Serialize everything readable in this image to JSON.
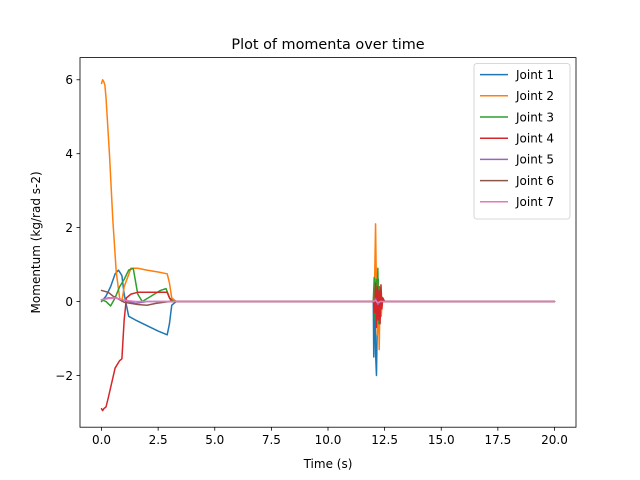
{
  "chart_data": {
    "type": "line",
    "title": "Plot of momenta over time",
    "xlabel": "Time (s)",
    "ylabel": "Momentum (kg/rad s-2)",
    "xlim": [
      -0.95,
      20.95
    ],
    "ylim": [
      -3.4,
      6.6
    ],
    "xticks": [
      0,
      2.5,
      5,
      7.5,
      10,
      12.5,
      15,
      17.5,
      20
    ],
    "xtick_labels": [
      "0.0",
      "2.5",
      "5.0",
      "7.5",
      "10.0",
      "12.5",
      "15.0",
      "17.5",
      "20.0"
    ],
    "yticks": [
      -2,
      0,
      2,
      4,
      6
    ],
    "ytick_labels": [
      "−2",
      "0",
      "2",
      "4",
      "6"
    ],
    "grid": false,
    "legend_position": "top-right",
    "series": [
      {
        "name": "Joint 1",
        "color": "#1f77b4",
        "x": [
          0,
          0.2,
          0.4,
          0.6,
          0.75,
          0.9,
          1.0,
          1.2,
          1.5,
          2.0,
          2.5,
          2.9,
          3.0,
          3.1,
          3.3,
          12.0,
          12.02,
          12.06,
          12.1,
          12.14,
          12.18,
          12.22,
          12.26,
          12.3,
          12.35,
          12.4,
          12.5,
          20.0
        ],
        "y": [
          0.0,
          0.15,
          0.4,
          0.75,
          0.85,
          0.7,
          0.2,
          -0.4,
          -0.5,
          -0.65,
          -0.8,
          -0.9,
          -0.6,
          -0.1,
          0.0,
          0.0,
          -1.5,
          0.5,
          -1.4,
          -2.0,
          -0.4,
          0.6,
          -0.8,
          0.3,
          -0.1,
          0.05,
          0.0,
          0.0
        ]
      },
      {
        "name": "Joint 2",
        "color": "#ff7f0e",
        "x": [
          0,
          0.05,
          0.1,
          0.15,
          0.2,
          0.35,
          0.5,
          0.65,
          0.8,
          0.9,
          1.0,
          1.3,
          1.6,
          2.0,
          2.5,
          2.9,
          3.0,
          3.1,
          3.3,
          12.0,
          12.06,
          12.1,
          12.14,
          12.18,
          12.22,
          12.26,
          12.3,
          12.35,
          12.4,
          12.5,
          20.0
        ],
        "y": [
          5.9,
          6.0,
          5.95,
          5.85,
          5.5,
          4.0,
          2.2,
          0.8,
          0.1,
          0.0,
          0.4,
          0.9,
          0.9,
          0.85,
          0.8,
          0.75,
          0.5,
          0.1,
          0.0,
          0.0,
          0.6,
          2.1,
          0.3,
          -0.9,
          0.5,
          -1.3,
          0.3,
          -0.4,
          0.1,
          0.0,
          0.0
        ]
      },
      {
        "name": "Joint 3",
        "color": "#2ca02c",
        "x": [
          0,
          0.2,
          0.4,
          0.6,
          0.8,
          1.0,
          1.2,
          1.4,
          1.6,
          1.8,
          2.2,
          2.6,
          2.85,
          3.0,
          3.2,
          12.0,
          12.04,
          12.08,
          12.12,
          12.16,
          12.2,
          12.24,
          12.28,
          12.32,
          12.36,
          12.4,
          12.5,
          20.0
        ],
        "y": [
          0.05,
          0.0,
          -0.12,
          0.1,
          0.4,
          0.6,
          0.85,
          0.9,
          0.2,
          0.0,
          0.15,
          0.3,
          0.35,
          0.1,
          0.0,
          0.0,
          0.65,
          -0.5,
          0.6,
          -0.3,
          0.9,
          -0.6,
          0.4,
          -0.2,
          0.15,
          0.05,
          0.0,
          0.0
        ]
      },
      {
        "name": "Joint 4",
        "color": "#d62728",
        "x": [
          0,
          0.05,
          0.1,
          0.2,
          0.3,
          0.45,
          0.6,
          0.8,
          0.9,
          1.0,
          1.1,
          1.3,
          1.6,
          2.0,
          2.5,
          2.9,
          3.0,
          3.1,
          3.2,
          12.0,
          12.06,
          12.1,
          12.14,
          12.18,
          12.22,
          12.26,
          12.3,
          12.34,
          12.38,
          12.42,
          12.5,
          20.0
        ],
        "y": [
          -2.9,
          -2.95,
          -2.9,
          -2.85,
          -2.6,
          -2.2,
          -1.8,
          -1.6,
          -1.55,
          -0.5,
          0.1,
          0.2,
          0.25,
          0.25,
          0.25,
          0.25,
          0.1,
          0.0,
          0.0,
          0.0,
          -0.3,
          0.5,
          -0.7,
          0.4,
          -0.5,
          0.3,
          -0.6,
          0.45,
          -0.2,
          0.1,
          0.0,
          0.0
        ]
      },
      {
        "name": "Joint 5",
        "color": "#9467bd",
        "x": [
          0,
          0.3,
          0.6,
          0.9,
          1.2,
          1.5,
          2.0,
          3.0,
          12.0,
          12.1,
          12.2,
          12.3,
          20.0
        ],
        "y": [
          0.05,
          0.1,
          0.1,
          0.05,
          0.0,
          -0.05,
          0.0,
          0.0,
          0.0,
          0.08,
          -0.08,
          0.0,
          0.0
        ]
      },
      {
        "name": "Joint 6",
        "color": "#8c564b",
        "x": [
          0,
          0.3,
          0.5,
          0.8,
          1.0,
          1.3,
          1.6,
          2.0,
          2.4,
          3.0,
          12.0,
          12.1,
          12.2,
          12.3,
          20.0
        ],
        "y": [
          0.3,
          0.25,
          0.15,
          0.05,
          -0.02,
          -0.05,
          -0.08,
          -0.1,
          -0.05,
          0.0,
          0.0,
          0.06,
          -0.05,
          0.0,
          0.0
        ]
      },
      {
        "name": "Joint 7",
        "color": "#e377c2",
        "x": [
          0,
          0.3,
          0.6,
          0.9,
          1.2,
          1.5,
          2.0,
          3.0,
          12.0,
          12.1,
          12.2,
          12.3,
          20.0
        ],
        "y": [
          0.05,
          0.08,
          0.1,
          0.05,
          0.02,
          0.0,
          0.0,
          0.0,
          0.0,
          0.04,
          -0.04,
          0.0,
          0.0
        ]
      }
    ]
  }
}
